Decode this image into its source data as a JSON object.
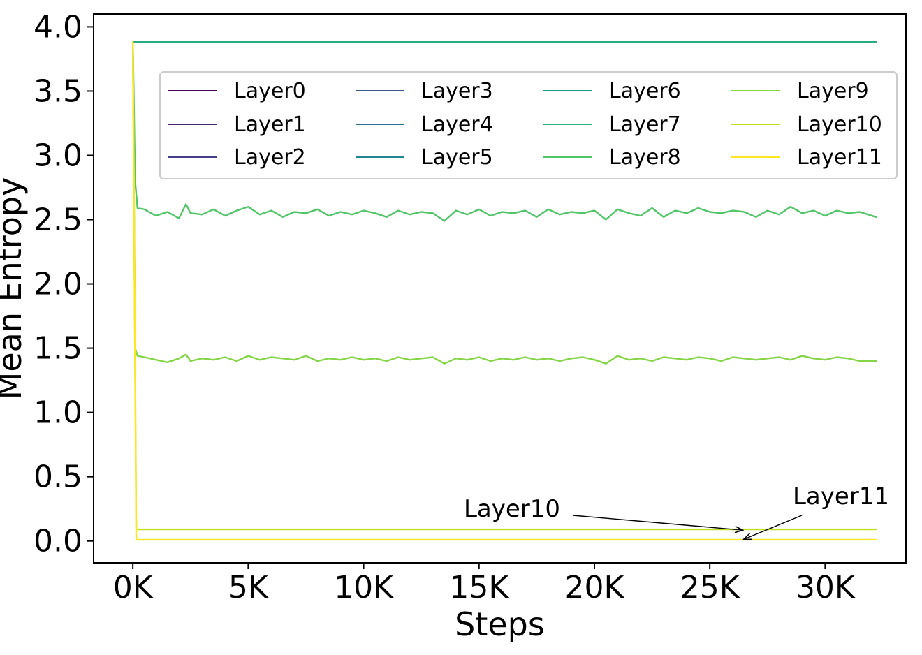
{
  "chart_data": {
    "type": "line",
    "xlabel": "Steps",
    "ylabel": "Mean Entropy",
    "xlim": [
      -1700,
      33500
    ],
    "ylim": [
      -0.17,
      4.1
    ],
    "xticks": [
      0,
      5000,
      10000,
      15000,
      20000,
      25000,
      30000
    ],
    "xtick_labels": [
      "0K",
      "5K",
      "10K",
      "15K",
      "20K",
      "25K",
      "30K"
    ],
    "yticks": [
      0.0,
      0.5,
      1.0,
      1.5,
      2.0,
      2.5,
      3.0,
      3.5,
      4.0
    ],
    "ytick_labels": [
      "0.0",
      "0.5",
      "1.0",
      "1.5",
      "2.0",
      "2.5",
      "3.0",
      "3.5",
      "4.0"
    ],
    "grid": false,
    "legend": {
      "placement": "upper center",
      "columns": 4
    },
    "series": [
      {
        "name": "Layer0",
        "color": "#440154",
        "x": [
          0,
          32200
        ],
        "values": [
          3.88,
          3.88
        ]
      },
      {
        "name": "Layer1",
        "color": "#482173",
        "x": [
          0,
          32200
        ],
        "values": [
          3.88,
          3.88
        ]
      },
      {
        "name": "Layer2",
        "color": "#433e85",
        "x": [
          0,
          32200
        ],
        "values": [
          3.88,
          3.88
        ]
      },
      {
        "name": "Layer3",
        "color": "#38588c",
        "x": [
          0,
          32200
        ],
        "values": [
          3.88,
          3.88
        ]
      },
      {
        "name": "Layer4",
        "color": "#2d708e",
        "x": [
          0,
          32200
        ],
        "values": [
          3.88,
          3.88
        ]
      },
      {
        "name": "Layer5",
        "color": "#25858e",
        "x": [
          0,
          32200
        ],
        "values": [
          3.88,
          3.88
        ]
      },
      {
        "name": "Layer6",
        "color": "#1e9b8a",
        "x": [
          0,
          32200
        ],
        "values": [
          3.88,
          3.88
        ]
      },
      {
        "name": "Layer7",
        "color": "#2ab07f",
        "x": [
          0,
          32200
        ],
        "values": [
          3.88,
          3.88
        ]
      },
      {
        "name": "Layer8",
        "color": "#52c569",
        "x": [
          0,
          100,
          200,
          500,
          1000,
          1500,
          2000,
          2300,
          2500,
          3000,
          3500,
          4000,
          4500,
          5000,
          5500,
          6000,
          6500,
          7000,
          7500,
          8000,
          8500,
          9000,
          9500,
          10000,
          10500,
          11000,
          11500,
          12000,
          12500,
          13000,
          13500,
          14000,
          14500,
          15000,
          15500,
          16000,
          16500,
          17000,
          17500,
          18000,
          18500,
          19000,
          19500,
          20000,
          20500,
          21000,
          21500,
          22000,
          22500,
          23000,
          23500,
          24000,
          24500,
          25000,
          25500,
          26000,
          26500,
          27000,
          27500,
          28000,
          28500,
          29000,
          29500,
          30000,
          30500,
          31000,
          31500,
          32200
        ],
        "values": [
          3.88,
          2.8,
          2.59,
          2.58,
          2.53,
          2.56,
          2.51,
          2.62,
          2.55,
          2.54,
          2.58,
          2.53,
          2.57,
          2.6,
          2.54,
          2.57,
          2.52,
          2.56,
          2.55,
          2.58,
          2.53,
          2.56,
          2.54,
          2.57,
          2.55,
          2.52,
          2.57,
          2.54,
          2.56,
          2.55,
          2.49,
          2.57,
          2.54,
          2.58,
          2.53,
          2.56,
          2.55,
          2.57,
          2.52,
          2.58,
          2.54,
          2.56,
          2.55,
          2.57,
          2.5,
          2.58,
          2.55,
          2.53,
          2.59,
          2.52,
          2.57,
          2.55,
          2.59,
          2.56,
          2.55,
          2.57,
          2.56,
          2.52,
          2.57,
          2.54,
          2.6,
          2.55,
          2.57,
          2.53,
          2.57,
          2.55,
          2.56,
          2.52
        ]
      },
      {
        "name": "Layer9",
        "color": "#86d549",
        "x": [
          0,
          100,
          200,
          500,
          1000,
          1500,
          2000,
          2300,
          2500,
          3000,
          3500,
          4000,
          4500,
          5000,
          5500,
          6000,
          6500,
          7000,
          7500,
          8000,
          8500,
          9000,
          9500,
          10000,
          10500,
          11000,
          11500,
          12000,
          12500,
          13000,
          13500,
          14000,
          14500,
          15000,
          15500,
          16000,
          16500,
          17000,
          17500,
          18000,
          18500,
          19000,
          19500,
          20000,
          20500,
          21000,
          21500,
          22000,
          22500,
          23000,
          23500,
          24000,
          24500,
          25000,
          25500,
          26000,
          26500,
          27000,
          27500,
          28000,
          28500,
          29000,
          29500,
          30000,
          30500,
          31000,
          31500,
          32200
        ],
        "values": [
          3.88,
          1.5,
          1.44,
          1.43,
          1.41,
          1.39,
          1.42,
          1.45,
          1.4,
          1.42,
          1.41,
          1.43,
          1.4,
          1.44,
          1.41,
          1.43,
          1.42,
          1.41,
          1.44,
          1.4,
          1.42,
          1.41,
          1.43,
          1.41,
          1.42,
          1.4,
          1.43,
          1.41,
          1.42,
          1.43,
          1.38,
          1.42,
          1.41,
          1.43,
          1.4,
          1.42,
          1.41,
          1.43,
          1.41,
          1.42,
          1.4,
          1.42,
          1.43,
          1.41,
          1.38,
          1.44,
          1.41,
          1.42,
          1.4,
          1.43,
          1.42,
          1.41,
          1.43,
          1.42,
          1.4,
          1.43,
          1.42,
          1.41,
          1.42,
          1.43,
          1.41,
          1.44,
          1.42,
          1.41,
          1.43,
          1.42,
          1.4,
          1.4
        ]
      },
      {
        "name": "Layer10",
        "color": "#c2df23",
        "x": [
          0,
          150,
          500,
          32200
        ],
        "values": [
          3.88,
          0.09,
          0.09,
          0.09
        ]
      },
      {
        "name": "Layer11",
        "color": "#fde725",
        "x": [
          0,
          150,
          500,
          32200
        ],
        "values": [
          3.88,
          0.01,
          0.01,
          0.01
        ]
      }
    ],
    "annotations": [
      {
        "text": "Layer10",
        "target": [
          26400,
          0.085
        ]
      },
      {
        "text": "Layer11",
        "target": [
          26500,
          0.015
        ]
      }
    ]
  }
}
